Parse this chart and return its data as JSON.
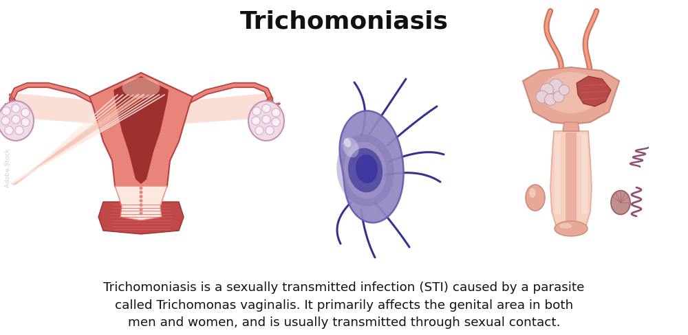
{
  "title": "Trichomoniasis",
  "title_fontsize": 26,
  "title_fontweight": "bold",
  "description": "Trichomoniasis is a sexually transmitted infection (STI) caused by a parasite\ncalled Trichomonas vaginalis. It primarily affects the genital area in both\nmen and women, and is usually transmitted through sexual contact.",
  "description_fontsize": 13.2,
  "bg_color": "#ffffff",
  "f_outer": "#e8847a",
  "f_mid": "#e09080",
  "f_dark": "#b84040",
  "f_light": "#f5c5b5",
  "f_vlight": "#fde8e0",
  "f_ovary": "#eedde8",
  "f_follicle": "#f8f0f5",
  "p_outer": "#9088c0",
  "p_mid": "#7868b0",
  "p_dark": "#5048a0",
  "p_flag": "#282888",
  "m_outer": "#e8a898",
  "m_mid": "#d08878",
  "m_dark": "#a05858",
  "m_light": "#f5cfc0",
  "m_vdark": "#804848",
  "m_tube": "#d07060",
  "m_epi": "#905070"
}
